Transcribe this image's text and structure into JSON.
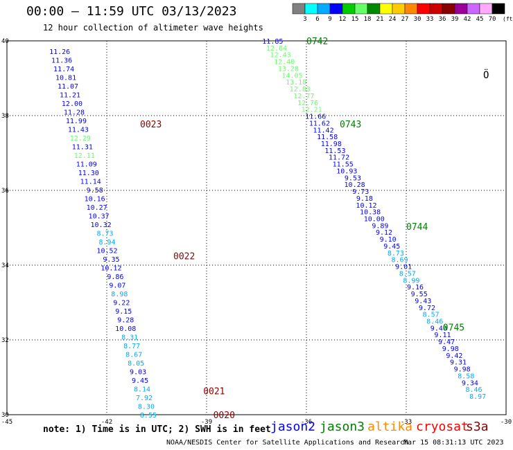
{
  "title": "00:00 — 11:59 UTC 03/13/2023",
  "subtitle": "12 hour collection of altimeter wave heights",
  "note": "note: 1) Time is in UTC; 2) SWH is in feet",
  "satellites": [
    {
      "name": "jason2",
      "color": "#0000ff"
    },
    {
      "name": "jason3",
      "color": "#008000"
    },
    {
      "name": "altika",
      "color": "#ff8c00"
    },
    {
      "name": "cryosat",
      "color": "#ff0000"
    },
    {
      "name": "s3a",
      "color": "#8b0000"
    }
  ],
  "credit": "NOAA/NESDIS Center for Satellite Applications and Research",
  "timestamp": "Mar 15 08:31:13 UTC 2023",
  "chart_data": {
    "type": "scatter",
    "xlim": [
      -45,
      -30
    ],
    "ylim": [
      30,
      40
    ],
    "x_ticks": [
      "-45",
      "-42",
      "-39",
      "-36",
      "-33",
      "-30"
    ],
    "y_ticks": [
      "30",
      "32",
      "34",
      "36",
      "38",
      "40"
    ],
    "grid": true,
    "legend_scale": {
      "labels": [
        "3",
        "6",
        "9",
        "12",
        "15",
        "18",
        "21",
        "24",
        "27",
        "30",
        "33",
        "36",
        "39",
        "42",
        "45",
        "70"
      ],
      "unit": "(ft)",
      "colors": [
        "#808080",
        "#00ffff",
        "#00aaff",
        "#0000ff",
        "#00cc00",
        "#66ff66",
        "#008800",
        "#ffff00",
        "#ffcc00",
        "#ff8800",
        "#ff0000",
        "#cc0000",
        "#880000",
        "#990099",
        "#cc66ff",
        "#ffaaff",
        "#000000"
      ]
    },
    "color_rules": [
      {
        "max": 9,
        "color": "#00aaff"
      },
      {
        "max": 12,
        "color": "#0000ff"
      },
      {
        "max": 15,
        "color": "#66ff66"
      }
    ],
    "time_labels": [
      {
        "text": "0742",
        "lon": -36.0,
        "lat": 40.0,
        "color": "#008000"
      },
      {
        "text": "0743",
        "lon": -35.0,
        "lat": 37.78,
        "color": "#008000"
      },
      {
        "text": "0744",
        "lon": -33.0,
        "lat": 35.04,
        "color": "#008000"
      },
      {
        "text": "0745",
        "lon": -31.9,
        "lat": 32.34,
        "color": "#008000"
      },
      {
        "text": "0023",
        "lon": -41.0,
        "lat": 37.78,
        "color": "#8b0000"
      },
      {
        "text": "0022",
        "lon": -40.0,
        "lat": 34.25,
        "color": "#8b0000"
      },
      {
        "text": "0021",
        "lon": -39.1,
        "lat": 30.64,
        "color": "#8b0000"
      },
      {
        "text": "0020",
        "lon": -38.8,
        "lat": 30.0,
        "color": "#8b0000"
      }
    ],
    "tracks": [
      {
        "name": "0020-0023",
        "start": {
          "lon": -43.1,
          "lat": 39.72
        },
        "end": {
          "lon": -40.5,
          "lat": 30.0
        },
        "values": [
          "11.26",
          "11.36",
          "11.74",
          "10.81",
          "11.07",
          "11.21",
          "12.00",
          "11.28",
          "11.99",
          "11.43",
          "12.29",
          "11.31",
          "12.11",
          "11.09",
          "11.30",
          "11.14",
          "9.58",
          "10.16",
          "10.27",
          "10.37",
          "10.32",
          "8.73",
          "8.94",
          "10.52",
          "9.35",
          "10.12",
          "9.86",
          "9.07",
          "8.98",
          "9.22",
          "9.15",
          "9.28",
          "10.08",
          "8.31",
          "8.77",
          "8.67",
          "8.05",
          "9.03",
          "9.45",
          "8.14",
          "7.92",
          "8.30",
          "8.55"
        ]
      },
      {
        "name": "0742-0745",
        "start": {
          "lon": -36.7,
          "lat": 40.0
        },
        "end": {
          "lon": -30.6,
          "lat": 30.5
        },
        "values": [
          "11.85",
          "12.64",
          "12.43",
          "12.40",
          "13.28",
          "14.05",
          "13.18",
          "12.83",
          "12.77",
          "12.76",
          "12.21",
          "11.66",
          "11.62",
          "11.42",
          "11.58",
          "11.98",
          "11.53",
          "11.72",
          "11.55",
          "10.93",
          "9.53",
          "10.28",
          "9.73",
          "9.18",
          "10.12",
          "10.38",
          "10.00",
          "9.89",
          "9.12",
          "9.10",
          "9.45",
          "8.73",
          "8.69",
          "9.01",
          "8.57",
          "8.99",
          "9.16",
          "9.55",
          "9.43",
          "9.72",
          "8.57",
          "8.46",
          "9.40",
          "9.11",
          "9.47",
          "9.98",
          "9.42",
          "9.31",
          "9.98",
          "8.58",
          "9.34",
          "8.46",
          "8.97"
        ]
      }
    ],
    "symbol": "Ö"
  }
}
